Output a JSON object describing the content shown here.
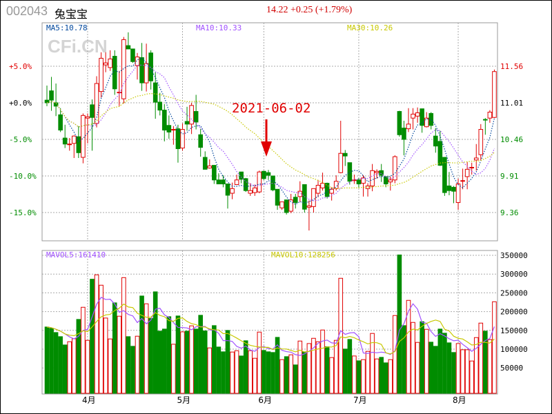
{
  "header": {
    "code": "002043",
    "name": "兔宝宝",
    "quote": "14.22 +0.25 (+1.79%)"
  },
  "watermark": "CFi.CN",
  "annotation": {
    "date": "2021-06-02"
  },
  "legend": {
    "ma5": "MA5:10.78",
    "ma10": "MA10:10.33",
    "ma30": "MA30:10.26",
    "mavol5": "MAVOL5:161410",
    "mavol10": "MAVOL10:128256"
  },
  "colors": {
    "up": "#e00000",
    "down": "#008c00",
    "ma5": "#00479d",
    "ma10": "#a050ff",
    "ma30": "#c8c800"
  },
  "axes": {
    "pct_labels": [
      "+5.0%",
      "+0.0%",
      "-5.0%",
      "-10.0%",
      "-15.0%"
    ],
    "price_labels": [
      "11.56",
      "11.01",
      "10.46",
      "9.91",
      "9.36"
    ],
    "price_ticks": [
      11.56,
      11.01,
      10.46,
      9.91,
      9.36
    ],
    "vol_labels": [
      "350000",
      "300000",
      "250000",
      "200000",
      "150000",
      "100000",
      "50000"
    ],
    "vol_ticks": [
      350000,
      300000,
      250000,
      200000,
      150000,
      100000,
      50000
    ],
    "months": [
      "4月",
      "5月",
      "6月",
      "7月",
      "8月"
    ],
    "month_index": [
      9,
      30,
      48,
      69,
      91
    ]
  },
  "chart_data": {
    "type": "candlestick",
    "fields": [
      "open",
      "high",
      "low",
      "close"
    ],
    "ohlc": [
      [
        11.05,
        11.27,
        10.96,
        11.01
      ],
      [
        11.19,
        11.4,
        10.89,
        11.05
      ],
      [
        11.01,
        11.3,
        10.81,
        10.96
      ],
      [
        10.83,
        10.93,
        10.57,
        10.6
      ],
      [
        10.48,
        10.68,
        10.33,
        10.39
      ],
      [
        10.38,
        10.48,
        10.29,
        10.39
      ],
      [
        10.4,
        10.52,
        10.18,
        10.51
      ],
      [
        10.5,
        10.66,
        10.18,
        10.26
      ],
      [
        10.19,
        10.85,
        10.1,
        10.82
      ],
      [
        10.78,
        10.85,
        10.4,
        10.8
      ],
      [
        10.98,
        11.06,
        10.29,
        10.79
      ],
      [
        10.7,
        11.41,
        10.64,
        11.3
      ],
      [
        11.18,
        11.77,
        11.09,
        11.68
      ],
      [
        11.58,
        11.77,
        11.47,
        11.61
      ],
      [
        11.54,
        11.8,
        11.49,
        11.67
      ],
      [
        11.71,
        11.8,
        11.13,
        11.22
      ],
      [
        11.16,
        11.49,
        10.96,
        11.17
      ],
      [
        11.07,
        12.0,
        11.0,
        11.96
      ],
      [
        11.87,
        12.07,
        11.82,
        11.82
      ],
      [
        11.82,
        11.82,
        11.61,
        11.63
      ],
      [
        11.57,
        11.76,
        11.36,
        11.7
      ],
      [
        11.69,
        11.91,
        11.19,
        11.31
      ],
      [
        11.31,
        11.9,
        11.18,
        11.6
      ],
      [
        11.76,
        11.8,
        11.21,
        11.34
      ],
      [
        11.31,
        11.47,
        10.77,
        11.02
      ],
      [
        11.02,
        11.16,
        10.82,
        10.9
      ],
      [
        10.9,
        10.99,
        10.43,
        10.6
      ],
      [
        10.67,
        10.82,
        10.47,
        10.57
      ],
      [
        10.6,
        10.66,
        10.38,
        10.61
      ],
      [
        10.62,
        10.68,
        10.11,
        10.32
      ],
      [
        10.33,
        10.7,
        10.29,
        10.61
      ],
      [
        10.73,
        10.95,
        10.59,
        10.69
      ],
      [
        10.69,
        11.01,
        10.54,
        10.97
      ],
      [
        10.88,
        11.13,
        10.61,
        10.72
      ],
      [
        10.53,
        10.62,
        10.2,
        10.34
      ],
      [
        10.19,
        10.28,
        10.01,
        10.01
      ],
      [
        10.03,
        10.16,
        10.02,
        10.06
      ],
      [
        10.07,
        10.07,
        9.79,
        9.85
      ],
      [
        9.85,
        9.95,
        9.79,
        9.79
      ],
      [
        9.85,
        9.92,
        9.74,
        9.79
      ],
      [
        9.79,
        9.79,
        9.42,
        9.62
      ],
      [
        9.65,
        9.81,
        9.56,
        9.72
      ],
      [
        9.78,
        9.93,
        9.78,
        9.85
      ],
      [
        9.97,
        9.97,
        9.8,
        9.86
      ],
      [
        9.87,
        9.88,
        9.67,
        9.69
      ],
      [
        9.65,
        9.8,
        9.61,
        9.69
      ],
      [
        9.66,
        9.78,
        9.61,
        9.73
      ],
      [
        9.67,
        9.99,
        9.65,
        9.97
      ],
      [
        9.98,
        9.99,
        9.85,
        9.87
      ],
      [
        9.96,
        10.0,
        9.85,
        9.92
      ],
      [
        9.91,
        9.91,
        9.68,
        9.7
      ],
      [
        9.71,
        9.71,
        9.4,
        9.47
      ],
      [
        9.43,
        9.52,
        9.4,
        9.52
      ],
      [
        9.55,
        9.55,
        9.33,
        9.36
      ],
      [
        9.38,
        9.64,
        9.35,
        9.55
      ],
      [
        9.59,
        9.64,
        9.42,
        9.51
      ],
      [
        9.6,
        9.83,
        9.52,
        9.68
      ],
      [
        9.78,
        9.78,
        9.36,
        9.41
      ],
      [
        9.44,
        9.54,
        9.09,
        9.46
      ],
      [
        9.45,
        9.72,
        9.36,
        9.72
      ],
      [
        9.65,
        9.85,
        9.59,
        9.77
      ],
      [
        9.73,
        9.96,
        9.69,
        9.8
      ],
      [
        9.8,
        9.81,
        9.57,
        9.6
      ],
      [
        9.65,
        9.74,
        9.54,
        9.71
      ],
      [
        9.72,
        9.92,
        9.69,
        9.83
      ],
      [
        9.96,
        10.74,
        9.95,
        10.25
      ],
      [
        10.25,
        10.3,
        10.06,
        10.21
      ],
      [
        10.11,
        10.11,
        9.78,
        9.83
      ],
      [
        9.84,
        9.93,
        9.79,
        9.85
      ],
      [
        9.85,
        9.88,
        9.73,
        9.79
      ],
      [
        9.8,
        9.92,
        9.6,
        9.88
      ],
      [
        9.72,
        9.8,
        9.6,
        9.76
      ],
      [
        9.76,
        10.09,
        9.68,
        9.99
      ],
      [
        9.96,
        10.01,
        9.87,
        9.98
      ],
      [
        9.99,
        10.09,
        9.82,
        9.92
      ],
      [
        9.9,
        9.9,
        9.74,
        9.79
      ],
      [
        9.82,
        9.9,
        9.69,
        9.85
      ],
      [
        9.85,
        10.22,
        9.8,
        10.2
      ],
      [
        10.88,
        10.89,
        10.5,
        10.53
      ],
      [
        10.63,
        10.74,
        10.22,
        10.46
      ],
      [
        10.62,
        10.93,
        10.57,
        10.69
      ],
      [
        10.78,
        10.93,
        10.61,
        10.84
      ],
      [
        10.81,
        10.94,
        10.71,
        10.86
      ],
      [
        10.92,
        10.92,
        10.56,
        10.67
      ],
      [
        10.65,
        10.87,
        10.64,
        10.78
      ],
      [
        10.85,
        10.87,
        10.61,
        10.67
      ],
      [
        10.51,
        10.63,
        10.26,
        10.36
      ],
      [
        10.43,
        10.59,
        10.06,
        10.07
      ],
      [
        10.19,
        10.19,
        9.61,
        9.66
      ],
      [
        9.76,
        9.97,
        9.62,
        9.69
      ],
      [
        9.74,
        9.76,
        9.5,
        9.68
      ],
      [
        9.51,
        9.87,
        9.4,
        9.79
      ],
      [
        9.83,
        10.02,
        9.71,
        9.84
      ],
      [
        9.9,
        10.12,
        9.71,
        10.01
      ],
      [
        10.03,
        10.11,
        9.93,
        10.04
      ],
      [
        10.15,
        10.39,
        9.99,
        10.18
      ],
      [
        10.23,
        10.69,
        10.14,
        10.61
      ],
      [
        10.76,
        10.78,
        10.53,
        10.75
      ],
      [
        10.78,
        10.9,
        10.71,
        10.87
      ],
      [
        10.79,
        11.51,
        10.78,
        11.48
      ]
    ],
    "volume": [
      159000,
      155300,
      144300,
      133300,
      111200,
      119800,
      127800,
      179200,
      211600,
      123500,
      286300,
      298000,
      270400,
      182900,
      127200,
      223300,
      187800,
      290600,
      133300,
      107600,
      134500,
      241600,
      220800,
      181700,
      252700,
      148000,
      153500,
      186500,
      113100,
      188400,
      146100,
      148000,
      162100,
      153500,
      190200,
      148600,
      103300,
      162700,
      105700,
      92900,
      149800,
      92300,
      95900,
      81800,
      122300,
      95900,
      75700,
      145500,
      96600,
      92900,
      91100,
      131400,
      72100,
      80000,
      84900,
      58000,
      121600,
      92900,
      114900,
      128900,
      119800,
      151000,
      106300,
      77600,
      123500,
      288800,
      100200,
      125900,
      81800,
      69000,
      72100,
      94100,
      141900,
      73900,
      78200,
      63500,
      72100,
      189600,
      351000,
      162700,
      230000,
      171200,
      118000,
      173100,
      152900,
      118600,
      107600,
      153500,
      142500,
      116800,
      91100,
      114900,
      98400,
      98400,
      68400,
      130800,
      169400,
      148000,
      125300,
      226300
    ]
  }
}
